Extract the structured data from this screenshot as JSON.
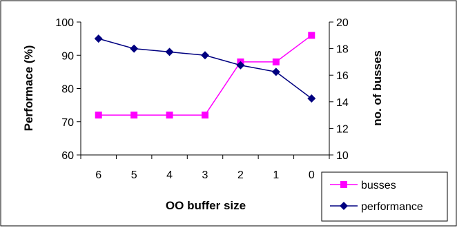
{
  "chart_data": {
    "type": "line",
    "title": "",
    "xlabel": "OO buffer size",
    "ylabel_left": "Performace (%)",
    "ylabel_right": "no. of busses",
    "categories": [
      "6",
      "5",
      "4",
      "3",
      "2",
      "1",
      "0"
    ],
    "y_left": {
      "min": 60,
      "max": 100,
      "step": 10,
      "ticks": [
        "60",
        "70",
        "80",
        "90",
        "100"
      ]
    },
    "y_right": {
      "min": 10,
      "max": 20,
      "step": 2,
      "ticks": [
        "10",
        "12",
        "14",
        "16",
        "18",
        "20"
      ]
    },
    "grid": false,
    "legend_position": "bottom-right",
    "series": [
      {
        "name": "busses",
        "axis": "right",
        "color": "#ff00ff",
        "marker": "square",
        "values": [
          13,
          13,
          13,
          13,
          17,
          17,
          19
        ]
      },
      {
        "name": "performance",
        "axis": "left",
        "color": "#000080",
        "marker": "diamond",
        "values": [
          95,
          92,
          91,
          90,
          87,
          85,
          77
        ]
      }
    ]
  }
}
